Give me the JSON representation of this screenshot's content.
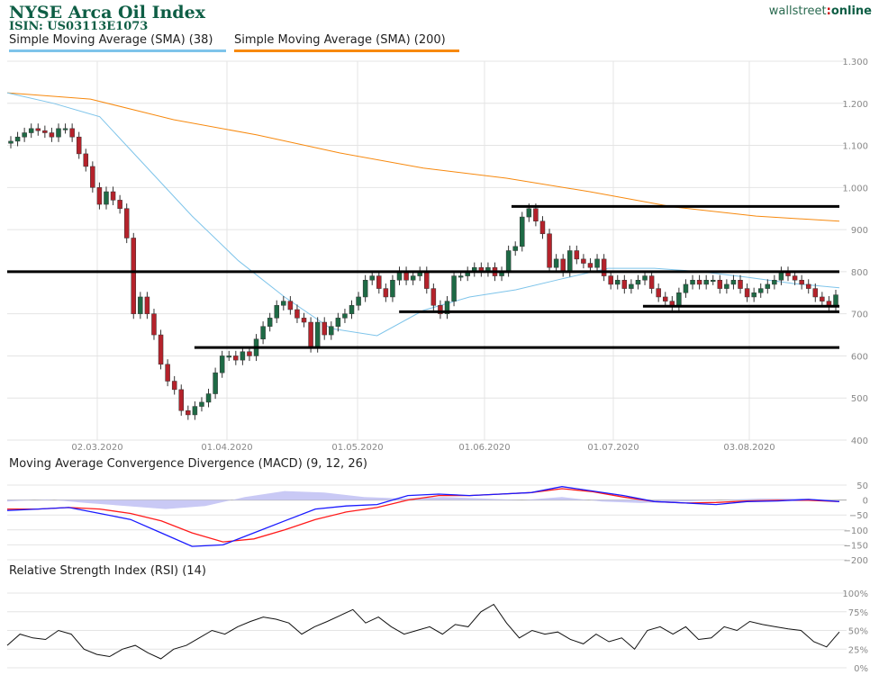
{
  "header": {
    "title": "NYSE Arca Oil Index",
    "isin": "ISIN: US03113E1073",
    "logo_left": "wallstreet",
    "logo_sep": ":",
    "logo_right": "online"
  },
  "legend": [
    {
      "label": "Simple Moving Average (SMA) (38)",
      "color": "#7ec4ea"
    },
    {
      "label": "Simple Moving Average (SMA) (200)",
      "color": "#f7890e"
    }
  ],
  "colors": {
    "up": "#1e6a45",
    "down": "#b5222b",
    "macd": "#1a1aff",
    "signal": "#ff1a1a",
    "histogram": "#c9c9f5",
    "rsi": "#111111",
    "levels": "#000000"
  },
  "chart_data": [
    {
      "type": "candlestick",
      "title": "NYSE Arca Oil Index",
      "ylim": [
        400,
        1300
      ],
      "yticks": [
        "1.300",
        "1.200",
        "1.100",
        "1.000",
        "900",
        "800",
        "700",
        "600",
        "500",
        "400"
      ],
      "yvalues": [
        1300,
        1200,
        1100,
        1000,
        900,
        800,
        700,
        600,
        500,
        400
      ],
      "xticks": [
        "02.03.2020",
        "01.04.2020",
        "01.05.2020",
        "01.06.2020",
        "01.07.2020",
        "03.08.2020"
      ],
      "grid": true,
      "closes": [
        1110,
        1120,
        1130,
        1140,
        1135,
        1130,
        1120,
        1140,
        1140,
        1120,
        1080,
        1050,
        1000,
        960,
        990,
        970,
        950,
        880,
        700,
        740,
        700,
        650,
        580,
        540,
        520,
        470,
        460,
        480,
        490,
        510,
        560,
        600,
        600,
        590,
        610,
        600,
        640,
        670,
        690,
        720,
        730,
        710,
        690,
        680,
        620,
        680,
        650,
        670,
        690,
        700,
        720,
        740,
        780,
        790,
        760,
        740,
        780,
        800,
        780,
        790,
        800,
        760,
        720,
        700,
        730,
        790,
        790,
        800,
        810,
        800,
        810,
        790,
        800,
        850,
        860,
        930,
        950,
        920,
        890,
        810,
        830,
        800,
        850,
        830,
        820,
        810,
        830,
        790,
        770,
        780,
        760,
        770,
        780,
        790,
        760,
        740,
        730,
        720,
        750,
        770,
        780,
        770,
        780,
        780,
        760,
        770,
        780,
        760,
        740,
        750,
        760,
        770,
        780,
        800,
        790,
        780,
        770,
        760,
        740,
        730,
        720,
        745
      ],
      "sma38": [
        1225,
        1200,
        1168,
        1050,
        932,
        826,
        740,
        665,
        648,
        708,
        740,
        757,
        783,
        808,
        808,
        800,
        787,
        772,
        762
      ],
      "sma200": [
        1225,
        1210,
        1161,
        1125,
        1082,
        1046,
        1022,
        990,
        954,
        932,
        920
      ],
      "levels": [
        {
          "value": 800,
          "from": 0
        },
        {
          "value": 955,
          "from": 0.606
        },
        {
          "value": 705,
          "from": 0.471
        },
        {
          "value": 718,
          "from": 0.764
        },
        {
          "value": 620,
          "from": 0.225
        }
      ]
    },
    {
      "type": "line",
      "title": "Moving Average Convergence Divergence (MACD) (9, 12, 26)",
      "ylim": [
        -200,
        50
      ],
      "yticks": [
        "50",
        "0",
        "−50",
        "−100",
        "−150",
        "−200"
      ],
      "yvalues": [
        50,
        0,
        -50,
        -100,
        -150,
        -200
      ],
      "macd": [
        -35,
        -30,
        -25,
        -45,
        -65,
        -110,
        -155,
        -150,
        -110,
        -70,
        -30,
        -20,
        -15,
        15,
        20,
        15,
        20,
        25,
        45,
        30,
        15,
        -5,
        -10,
        -15,
        -5,
        -3,
        2,
        -5
      ],
      "signal": [
        -30,
        -30,
        -25,
        -30,
        -45,
        -70,
        -110,
        -140,
        -130,
        -100,
        -65,
        -40,
        -25,
        0,
        15,
        15,
        20,
        25,
        38,
        28,
        10,
        -5,
        -10,
        -8,
        -3,
        -1,
        -1,
        -5
      ],
      "histogram": [
        -5,
        2,
        -10,
        -20,
        -30,
        -20,
        10,
        30,
        25,
        10,
        5,
        10,
        5,
        0,
        10,
        -5,
        -10,
        -5,
        0,
        5,
        5,
        0
      ]
    },
    {
      "type": "line",
      "title": "Relative Strength Index (RSI) (14)",
      "ylim": [
        0,
        100
      ],
      "yticks": [
        "100%",
        "75%",
        "50%",
        "25%",
        "0%"
      ],
      "yvalues": [
        100,
        75,
        50,
        25,
        0
      ],
      "rsi": [
        30,
        45,
        40,
        38,
        50,
        45,
        25,
        18,
        15,
        25,
        30,
        20,
        12,
        25,
        30,
        40,
        50,
        45,
        55,
        62,
        68,
        65,
        60,
        45,
        55,
        62,
        70,
        78,
        60,
        68,
        55,
        45,
        50,
        55,
        45,
        58,
        55,
        75,
        85,
        60,
        40,
        50,
        45,
        48,
        38,
        32,
        45,
        35,
        40,
        25,
        50,
        55,
        45,
        55,
        38,
        40,
        55,
        50,
        62,
        58,
        55,
        52,
        50,
        35,
        28,
        48
      ]
    }
  ]
}
